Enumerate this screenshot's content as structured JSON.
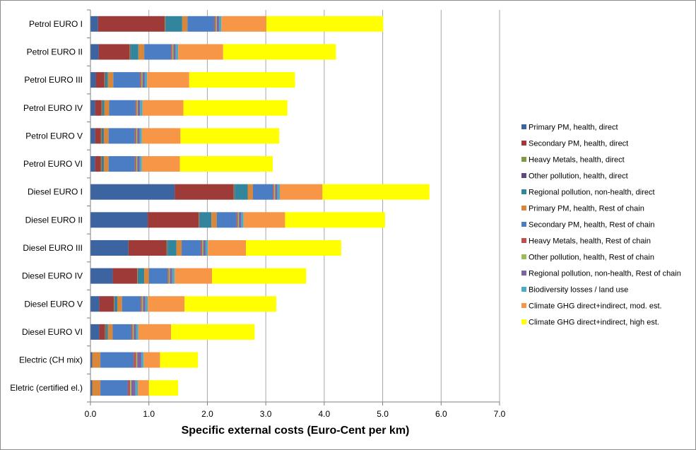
{
  "chart_data": {
    "type": "bar",
    "orientation": "horizontal",
    "stacked": true,
    "title": "",
    "xlabel": "Specific external costs (Euro-Cent per km)",
    "ylabel": "",
    "xlim": [
      0,
      7
    ],
    "xticks": [
      "0.0",
      "1.0",
      "2.0",
      "3.0",
      "4.0",
      "5.0",
      "6.0",
      "7.0"
    ],
    "grid": "vertical",
    "legend_position": "right",
    "categories": [
      "Petrol EURO I",
      "Petrol EURO II",
      "Petrol EURO III",
      "Petrol EURO IV",
      "Petrol EURO V",
      "Petrol EURO VI",
      "Diesel EURO I",
      "Diesel EURO II",
      "Diesel EURO III",
      "Diesel EURO IV",
      "Diesel EURO V",
      "Diesel EURO VI",
      "Electric (CH mix)",
      "Eletric (certified el.)"
    ],
    "series": [
      {
        "name": "Primary PM, health, direct",
        "color": "#3b64a0",
        "values": [
          0.13,
          0.14,
          0.09,
          0.08,
          0.08,
          0.08,
          1.44,
          0.98,
          0.65,
          0.38,
          0.15,
          0.15,
          0.03,
          0.03
        ]
      },
      {
        "name": "Secondary PM, health, direct",
        "color": "#9e3a38",
        "values": [
          1.14,
          0.53,
          0.15,
          0.11,
          0.1,
          0.1,
          1.01,
          0.87,
          0.65,
          0.42,
          0.25,
          0.1,
          0.0,
          0.0
        ]
      },
      {
        "name": "Heavy Metals, health, direct",
        "color": "#7e9a3f",
        "values": [
          0.01,
          0.01,
          0.01,
          0.01,
          0.01,
          0.01,
          0.01,
          0.01,
          0.01,
          0.01,
          0.01,
          0.01,
          0.0,
          0.0
        ]
      },
      {
        "name": "Other pollution, health, direct",
        "color": "#604a7b",
        "values": [
          0.01,
          0.01,
          0.01,
          0.01,
          0.01,
          0.01,
          0.01,
          0.01,
          0.01,
          0.01,
          0.01,
          0.01,
          0.0,
          0.0
        ]
      },
      {
        "name": "Regional pollution, non-health, direct",
        "color": "#31859c",
        "values": [
          0.28,
          0.13,
          0.04,
          0.03,
          0.03,
          0.03,
          0.22,
          0.2,
          0.15,
          0.1,
          0.04,
          0.03,
          0.0,
          0.0
        ]
      },
      {
        "name": "Primary PM, health, Rest of chain",
        "color": "#d9873a",
        "values": [
          0.09,
          0.1,
          0.09,
          0.08,
          0.08,
          0.08,
          0.09,
          0.09,
          0.09,
          0.08,
          0.08,
          0.08,
          0.14,
          0.14
        ]
      },
      {
        "name": "Secondary PM, health, Rest of chain",
        "color": "#4a7dc4",
        "values": [
          0.46,
          0.46,
          0.46,
          0.45,
          0.45,
          0.45,
          0.34,
          0.34,
          0.33,
          0.32,
          0.32,
          0.32,
          0.57,
          0.47
        ]
      },
      {
        "name": "Heavy Metals, health, Rest of chain",
        "color": "#c0504d",
        "values": [
          0.02,
          0.02,
          0.02,
          0.02,
          0.02,
          0.02,
          0.02,
          0.02,
          0.02,
          0.02,
          0.02,
          0.02,
          0.04,
          0.04
        ]
      },
      {
        "name": "Other pollution, health, Rest of chain",
        "color": "#9bbb59",
        "values": [
          0.02,
          0.02,
          0.02,
          0.02,
          0.02,
          0.02,
          0.02,
          0.02,
          0.02,
          0.02,
          0.02,
          0.02,
          0.02,
          0.02
        ]
      },
      {
        "name": "Regional pollution, non-health, Rest of chain",
        "color": "#8064a2",
        "values": [
          0.04,
          0.04,
          0.04,
          0.04,
          0.04,
          0.04,
          0.04,
          0.04,
          0.04,
          0.04,
          0.04,
          0.04,
          0.07,
          0.07
        ]
      },
      {
        "name": "Biodiversity losses / land use",
        "color": "#4bacc6",
        "values": [
          0.04,
          0.04,
          0.04,
          0.04,
          0.04,
          0.04,
          0.04,
          0.04,
          0.04,
          0.04,
          0.04,
          0.04,
          0.04,
          0.04
        ]
      },
      {
        "name": "Climate GHG direct+indirect, mod. est.",
        "color": "#f79646",
        "values": [
          0.77,
          0.77,
          0.72,
          0.7,
          0.66,
          0.65,
          0.73,
          0.71,
          0.65,
          0.64,
          0.63,
          0.56,
          0.28,
          0.19
        ]
      },
      {
        "name": "Climate GHG direct+indirect, high est.",
        "color": "#ffff00",
        "values": [
          2.0,
          1.93,
          1.81,
          1.78,
          1.69,
          1.59,
          1.83,
          1.71,
          1.63,
          1.61,
          1.57,
          1.43,
          0.65,
          0.5
        ]
      }
    ]
  }
}
